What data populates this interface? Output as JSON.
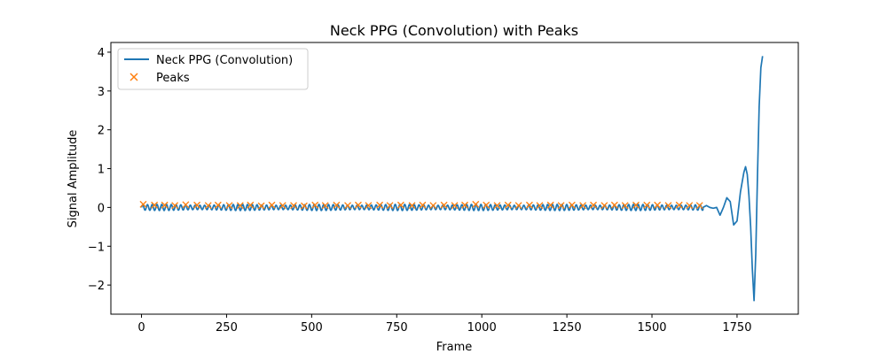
{
  "chart_data": {
    "type": "line",
    "title": "Neck PPG (Convolution) with Peaks",
    "xlabel": "Frame",
    "ylabel": "Signal Amplitude",
    "xlim": [
      -90,
      1930
    ],
    "ylim": [
      -2.75,
      4.25
    ],
    "xticks": [
      0,
      250,
      500,
      750,
      1000,
      1250,
      1500,
      1750
    ],
    "xtick_labels": [
      "0",
      "250",
      "500",
      "750",
      "1000",
      "1250",
      "1500",
      "1750"
    ],
    "yticks": [
      -2,
      -1,
      0,
      1,
      2,
      3,
      4
    ],
    "ytick_labels": [
      "−2",
      "−1",
      "0",
      "1",
      "2",
      "3",
      "4"
    ],
    "grid": false,
    "legend_position": "top-left",
    "colors": {
      "line": "#1f77b4",
      "peaks": "#ff7f0e"
    },
    "series": [
      {
        "name": "Neck PPG (Convolution)",
        "kind": "line",
        "x": [
          0,
          1650,
          1660,
          1670,
          1680,
          1690,
          1700,
          1710,
          1720,
          1730,
          1740,
          1750,
          1760,
          1770,
          1775,
          1780,
          1785,
          1790,
          1795,
          1800,
          1805,
          1810,
          1815,
          1820,
          1825
        ],
        "y": [
          0,
          0,
          0.05,
          0,
          -0.02,
          0.0,
          -0.2,
          0.0,
          0.25,
          0.15,
          -0.45,
          -0.35,
          0.4,
          0.9,
          1.05,
          0.85,
          0.3,
          -0.5,
          -1.6,
          -2.4,
          -1.2,
          0.8,
          2.6,
          3.6,
          3.9
        ],
        "oscillation": {
          "x_from": 0,
          "x_to": 1650,
          "period_frames": 14,
          "amplitude": 0.08,
          "offset": 0.0
        }
      },
      {
        "name": "Peaks",
        "kind": "scatter",
        "marker": "x",
        "x": [
          5,
          38,
          68,
          98,
          130,
          163,
          196,
          225,
          258,
          290,
          320,
          352,
          383,
          415,
          447,
          478,
          510,
          540,
          573,
          606,
          637,
          667,
          700,
          730,
          762,
          795,
          826,
          857,
          889,
          920,
          950,
          982,
          1013,
          1045,
          1077,
          1108,
          1140,
          1170,
          1202,
          1233,
          1265,
          1297,
          1328,
          1360,
          1390,
          1421,
          1453,
          1485,
          1516,
          1548,
          1580,
          1610,
          1640
        ],
        "y": [
          0.08,
          0.06,
          0.06,
          0.05,
          0.07,
          0.06,
          0.05,
          0.06,
          0.05,
          0.05,
          0.06,
          0.04,
          0.06,
          0.05,
          0.05,
          0.04,
          0.06,
          0.05,
          0.06,
          0.05,
          0.06,
          0.05,
          0.06,
          0.05,
          0.06,
          0.05,
          0.06,
          0.05,
          0.06,
          0.05,
          0.06,
          0.08,
          0.06,
          0.05,
          0.06,
          0.05,
          0.06,
          0.05,
          0.06,
          0.05,
          0.06,
          0.05,
          0.06,
          0.05,
          0.06,
          0.05,
          0.06,
          0.06,
          0.06,
          0.05,
          0.06,
          0.05,
          0.05
        ]
      }
    ]
  }
}
